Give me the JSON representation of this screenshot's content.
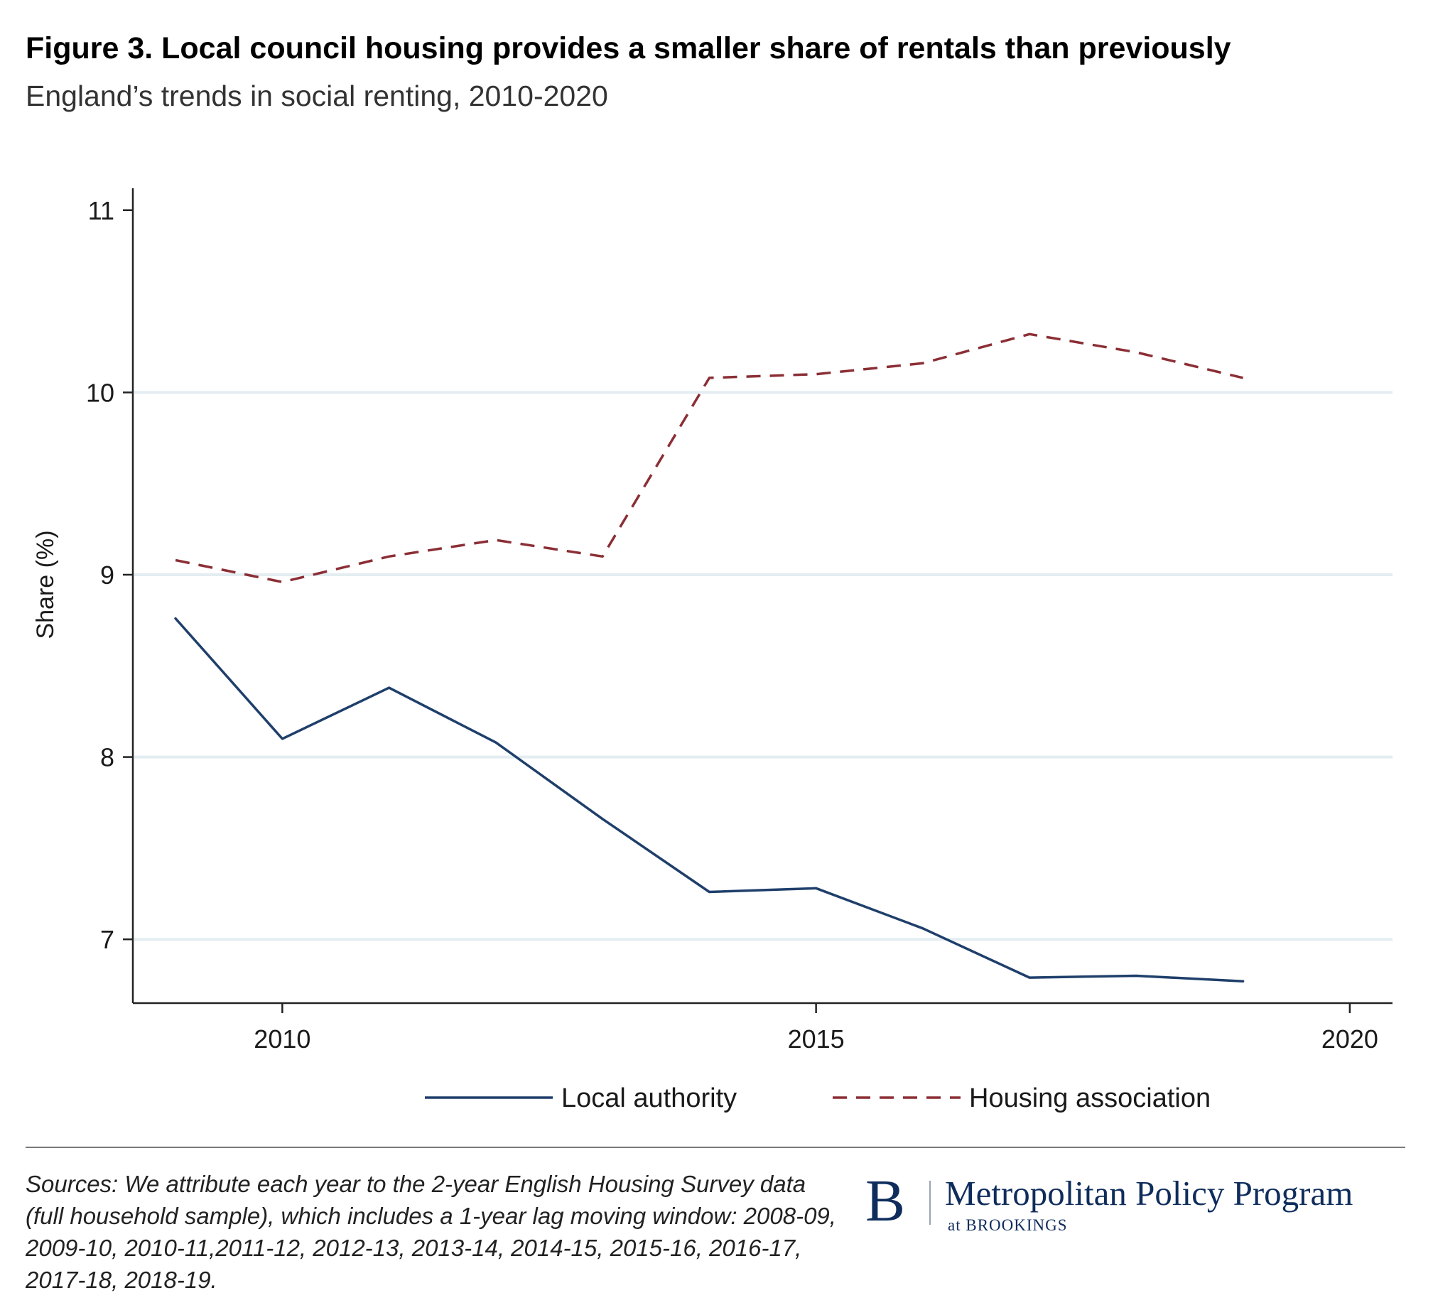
{
  "header": {
    "title": "Figure 3. Local council housing provides a smaller share of rentals than previously",
    "subtitle": "England’s trends in social renting, 2010-2020"
  },
  "chart_data": {
    "type": "line",
    "xlabel": "",
    "ylabel": "Share (%)",
    "xlim": [
      2008.6,
      2020.4
    ],
    "ylim": [
      6.65,
      11.12
    ],
    "xticks": [
      2010,
      2015,
      2020
    ],
    "yticks": [
      7,
      8,
      9,
      10,
      11
    ],
    "grid": "horizontal",
    "legend_position": "bottom",
    "x": [
      2009,
      2010,
      2011,
      2012,
      2013,
      2014,
      2015,
      2016,
      2017,
      2018,
      2019
    ],
    "series": [
      {
        "name": "Local authority",
        "color": "#1f3f6b",
        "style": "solid",
        "values": [
          8.76,
          8.1,
          8.38,
          8.08,
          7.66,
          7.26,
          7.28,
          7.06,
          6.79,
          6.8,
          6.77
        ]
      },
      {
        "name": "Housing association",
        "color": "#8b2e35",
        "style": "dashed",
        "values": [
          9.08,
          8.96,
          9.1,
          9.19,
          9.1,
          10.08,
          10.1,
          10.16,
          10.32,
          10.22,
          10.08
        ]
      }
    ]
  },
  "footer": {
    "sources": "Sources: We attribute each year to the 2-year English Housing Survey data (full household sample), which includes a 1-year lag moving window: 2008-09, 2009-10, 2010-11,2011-12, 2012-13, 2013-14, 2014-15, 2015-16, 2016-17, 2017-18, 2018-19.",
    "logo": {
      "letter": "B",
      "name": "Metropolitan Policy Program",
      "sub": "at BROOKINGS"
    }
  },
  "colors": {
    "grid": "#e3edf2",
    "axis": "#222222"
  }
}
